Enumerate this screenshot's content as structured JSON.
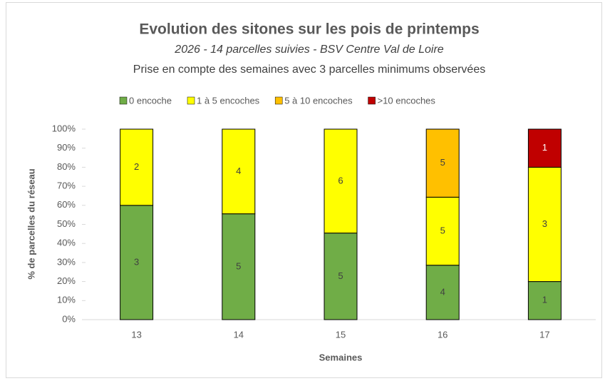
{
  "chart_data": {
    "type": "bar",
    "stacking": "percent",
    "title": "Evolution des sitones sur les pois de printemps",
    "subtitle": "2026 - 14 parcelles suivies - BSV Centre Val de Loire",
    "note": "Prise en compte des semaines avec 3 parcelles minimums observées",
    "x_label": "Semaines",
    "y_label": "% de parcelles du réseau",
    "categories": [
      "13",
      "14",
      "15",
      "16",
      "17"
    ],
    "series": [
      {
        "name": "0 encoche",
        "color": "#70ad47",
        "label_color": "#404040",
        "values": [
          3,
          5,
          5,
          4,
          1
        ]
      },
      {
        "name": "1 à 5 encoches",
        "color": "#ffff00",
        "label_color": "#404040",
        "values": [
          2,
          4,
          6,
          5,
          3
        ]
      },
      {
        "name": "5 à 10 encoches",
        "color": "#ffc000",
        "label_color": "#404040",
        "values": [
          0,
          0,
          0,
          5,
          0
        ]
      },
      {
        "name": ">10 encoches",
        "color": "#c00000",
        "label_color": "#ffffff",
        "values": [
          0,
          0,
          0,
          0,
          1
        ]
      }
    ],
    "ylim": [
      0,
      100
    ],
    "yticks": [
      {
        "value": 0,
        "label": "0%"
      },
      {
        "value": 10,
        "label": "10%"
      },
      {
        "value": 20,
        "label": "20%"
      },
      {
        "value": 30,
        "label": "30%"
      },
      {
        "value": 40,
        "label": "40%"
      },
      {
        "value": 50,
        "label": "50%"
      },
      {
        "value": 60,
        "label": "60%"
      },
      {
        "value": 70,
        "label": "70%"
      },
      {
        "value": 80,
        "label": "80%"
      },
      {
        "value": 90,
        "label": "90%"
      },
      {
        "value": 100,
        "label": "100%"
      }
    ],
    "legend": "top",
    "grid": false
  }
}
